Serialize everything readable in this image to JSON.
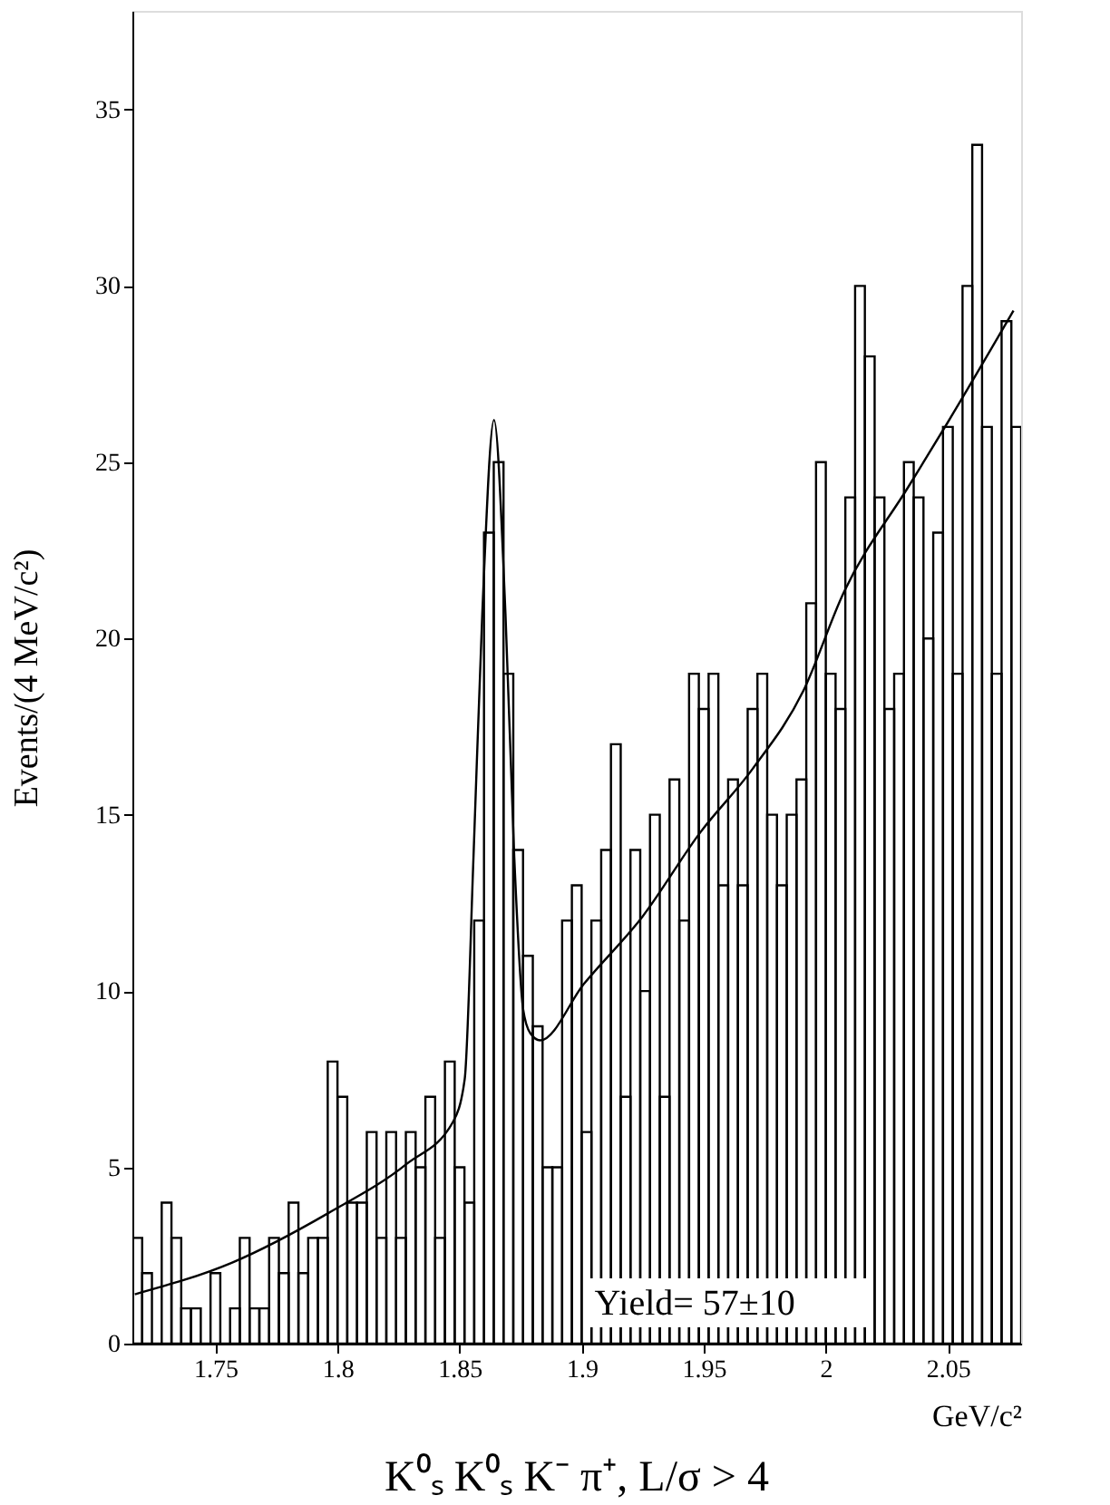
{
  "chart_data": {
    "type": "histogram",
    "title": "K⁰ₛ K⁰ₛ K⁻ π⁺, L/σ > 4",
    "xlabel": "GeV/c²",
    "ylabel": "Events/(4 MeV/c²)",
    "annotations": [
      "Yield=   57±10"
    ],
    "xlim": [
      1.716,
      2.08
    ],
    "ylim": [
      0,
      37.8
    ],
    "xticks": [
      1.75,
      1.8,
      1.85,
      1.9,
      1.95,
      2,
      2.05
    ],
    "yticks": [
      0,
      5,
      10,
      15,
      20,
      25,
      30,
      35
    ],
    "series": [
      {
        "color": "#000000",
        "bins": [
          1.716,
          1.72,
          1.724,
          1.728,
          1.732,
          1.736,
          1.74,
          1.744,
          1.748,
          1.752,
          1.756,
          1.76,
          1.764,
          1.768,
          1.772,
          1.776,
          1.78,
          1.784,
          1.788,
          1.792,
          1.796,
          1.8,
          1.804,
          1.808,
          1.812,
          1.816,
          1.82,
          1.824,
          1.828,
          1.832,
          1.836,
          1.84,
          1.844,
          1.848,
          1.852,
          1.856,
          1.86,
          1.864,
          1.868,
          1.872,
          1.876,
          1.88,
          1.884,
          1.888,
          1.892,
          1.896,
          1.9,
          1.904,
          1.908,
          1.912,
          1.916,
          1.92,
          1.924,
          1.928,
          1.932,
          1.936,
          1.94,
          1.944,
          1.948,
          1.952,
          1.956,
          1.96,
          1.964,
          1.968,
          1.972,
          1.976,
          1.98,
          1.984,
          1.988,
          1.992,
          1.996,
          2.0,
          2.004,
          2.008,
          2.012,
          2.016,
          2.02,
          2.024,
          2.028,
          2.032,
          2.036,
          2.04,
          2.044,
          2.048,
          2.052,
          2.056,
          2.06,
          2.064,
          2.068,
          2.072,
          2.076,
          2.08
        ],
        "values": [
          3,
          2,
          0,
          4,
          3,
          1,
          1,
          0,
          2,
          0,
          1,
          3,
          1,
          1,
          3,
          2,
          4,
          2,
          3,
          3,
          8,
          7,
          4,
          4,
          6,
          3,
          6,
          3,
          6,
          5,
          7,
          3,
          8,
          5,
          4,
          12,
          23,
          25,
          19,
          14,
          11,
          9,
          5,
          5,
          12,
          13,
          6,
          12,
          14,
          17,
          7,
          14,
          10,
          15,
          7,
          16,
          12,
          19,
          18,
          19,
          13,
          16,
          13,
          18,
          19,
          15,
          13,
          15,
          16,
          21,
          25,
          19,
          18,
          24,
          30,
          28,
          24,
          18,
          19,
          25,
          24,
          20,
          23,
          26,
          19,
          30,
          34,
          26,
          19,
          29,
          26
        ]
      },
      {
        "type": "line",
        "color": "#000000",
        "line_style": "solid",
        "marker": "none",
        "x": [
          1.717,
          1.7569,
          1.7962,
          1.8284,
          1.8474,
          1.8521,
          1.8557,
          1.8593,
          1.8641,
          1.8688,
          1.8724,
          1.876,
          1.879,
          1.883,
          1.9009,
          1.9248,
          1.9486,
          1.97,
          1.9907,
          2.0073,
          2.0338,
          2.0497,
          2.0769
        ],
        "values": [
          1.4,
          2.3,
          3.7,
          5.1,
          6.3,
          7.5,
          13.8,
          20.7,
          26.2,
          20.7,
          13.8,
          9.5,
          8.8,
          8.6,
          10.2,
          12.1,
          14.5,
          16.3,
          18.5,
          21.3,
          24.3,
          26.1,
          29.3
        ]
      }
    ]
  }
}
